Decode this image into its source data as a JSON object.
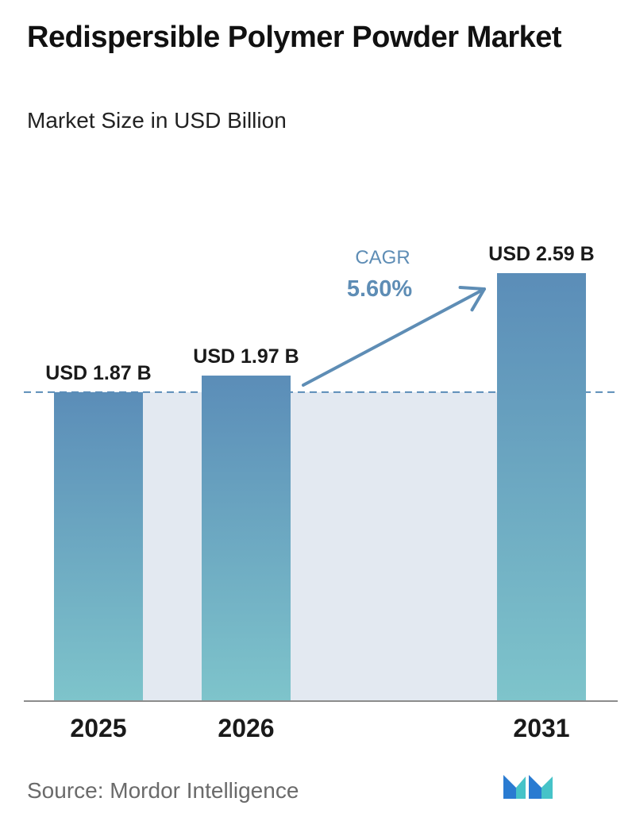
{
  "header": {
    "title": "Redispersible Polymer Powder Market",
    "subtitle": "Market Size in USD Billion"
  },
  "chart_data": {
    "type": "bar",
    "categories": [
      "2025",
      "2026",
      "2031"
    ],
    "values": [
      1.87,
      1.97,
      2.59
    ],
    "data_labels": [
      "USD 1.87 B",
      "USD 1.97 B",
      "USD 2.59 B"
    ],
    "ylim": [
      0,
      2.59
    ],
    "grid": false,
    "reference_line": {
      "value": 1.87,
      "style": "dashed"
    },
    "annotation": {
      "label": "CAGR",
      "value": "5.60%"
    }
  },
  "colors": {
    "bar_top": "#5b8db8",
    "bar_bottom": "#7ec4cb",
    "band": "#e3e9f1",
    "arrow": "#5e8db5",
    "axis": "#8c8c8c",
    "dashed": "#5b8db8"
  },
  "footer": {
    "source": "Source:  Mordor Intelligence",
    "logo_icon": "mordor-intelligence-logo-icon"
  }
}
